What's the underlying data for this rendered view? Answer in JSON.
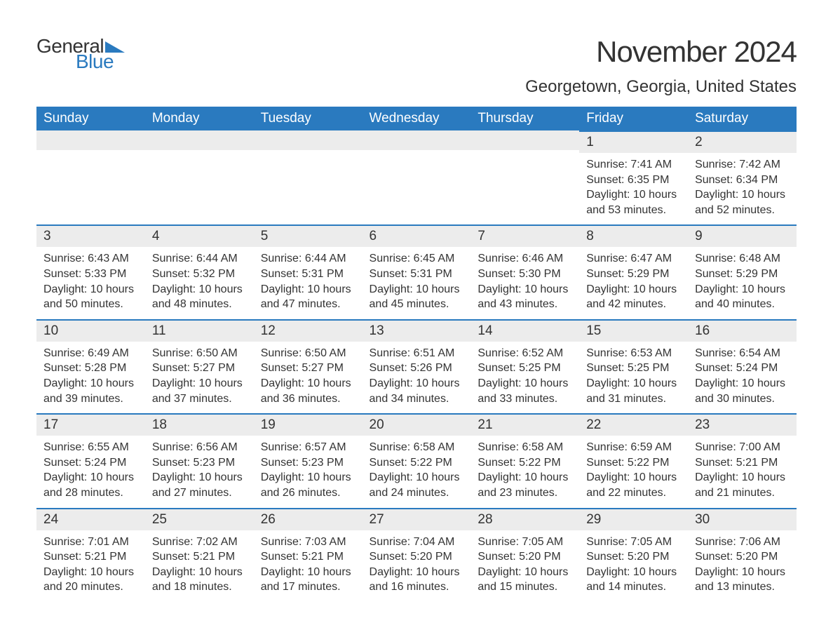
{
  "logo": {
    "line1": "General",
    "line2": "Blue"
  },
  "header": {
    "title": "November 2024",
    "location": "Georgetown, Georgia, United States"
  },
  "colors": {
    "brand_blue": "#2a7abf",
    "header_bg": "#ececec",
    "text": "#333333",
    "bg": "#ffffff"
  },
  "day_names": [
    "Sunday",
    "Monday",
    "Tuesday",
    "Wednesday",
    "Thursday",
    "Friday",
    "Saturday"
  ],
  "weeks": [
    [
      null,
      null,
      null,
      null,
      null,
      {
        "n": "1",
        "sr": "7:41 AM",
        "ss": "6:35 PM",
        "dl": "10 hours and 53 minutes."
      },
      {
        "n": "2",
        "sr": "7:42 AM",
        "ss": "6:34 PM",
        "dl": "10 hours and 52 minutes."
      }
    ],
    [
      {
        "n": "3",
        "sr": "6:43 AM",
        "ss": "5:33 PM",
        "dl": "10 hours and 50 minutes."
      },
      {
        "n": "4",
        "sr": "6:44 AM",
        "ss": "5:32 PM",
        "dl": "10 hours and 48 minutes."
      },
      {
        "n": "5",
        "sr": "6:44 AM",
        "ss": "5:31 PM",
        "dl": "10 hours and 47 minutes."
      },
      {
        "n": "6",
        "sr": "6:45 AM",
        "ss": "5:31 PM",
        "dl": "10 hours and 45 minutes."
      },
      {
        "n": "7",
        "sr": "6:46 AM",
        "ss": "5:30 PM",
        "dl": "10 hours and 43 minutes."
      },
      {
        "n": "8",
        "sr": "6:47 AM",
        "ss": "5:29 PM",
        "dl": "10 hours and 42 minutes."
      },
      {
        "n": "9",
        "sr": "6:48 AM",
        "ss": "5:29 PM",
        "dl": "10 hours and 40 minutes."
      }
    ],
    [
      {
        "n": "10",
        "sr": "6:49 AM",
        "ss": "5:28 PM",
        "dl": "10 hours and 39 minutes."
      },
      {
        "n": "11",
        "sr": "6:50 AM",
        "ss": "5:27 PM",
        "dl": "10 hours and 37 minutes."
      },
      {
        "n": "12",
        "sr": "6:50 AM",
        "ss": "5:27 PM",
        "dl": "10 hours and 36 minutes."
      },
      {
        "n": "13",
        "sr": "6:51 AM",
        "ss": "5:26 PM",
        "dl": "10 hours and 34 minutes."
      },
      {
        "n": "14",
        "sr": "6:52 AM",
        "ss": "5:25 PM",
        "dl": "10 hours and 33 minutes."
      },
      {
        "n": "15",
        "sr": "6:53 AM",
        "ss": "5:25 PM",
        "dl": "10 hours and 31 minutes."
      },
      {
        "n": "16",
        "sr": "6:54 AM",
        "ss": "5:24 PM",
        "dl": "10 hours and 30 minutes."
      }
    ],
    [
      {
        "n": "17",
        "sr": "6:55 AM",
        "ss": "5:24 PM",
        "dl": "10 hours and 28 minutes."
      },
      {
        "n": "18",
        "sr": "6:56 AM",
        "ss": "5:23 PM",
        "dl": "10 hours and 27 minutes."
      },
      {
        "n": "19",
        "sr": "6:57 AM",
        "ss": "5:23 PM",
        "dl": "10 hours and 26 minutes."
      },
      {
        "n": "20",
        "sr": "6:58 AM",
        "ss": "5:22 PM",
        "dl": "10 hours and 24 minutes."
      },
      {
        "n": "21",
        "sr": "6:58 AM",
        "ss": "5:22 PM",
        "dl": "10 hours and 23 minutes."
      },
      {
        "n": "22",
        "sr": "6:59 AM",
        "ss": "5:22 PM",
        "dl": "10 hours and 22 minutes."
      },
      {
        "n": "23",
        "sr": "7:00 AM",
        "ss": "5:21 PM",
        "dl": "10 hours and 21 minutes."
      }
    ],
    [
      {
        "n": "24",
        "sr": "7:01 AM",
        "ss": "5:21 PM",
        "dl": "10 hours and 20 minutes."
      },
      {
        "n": "25",
        "sr": "7:02 AM",
        "ss": "5:21 PM",
        "dl": "10 hours and 18 minutes."
      },
      {
        "n": "26",
        "sr": "7:03 AM",
        "ss": "5:21 PM",
        "dl": "10 hours and 17 minutes."
      },
      {
        "n": "27",
        "sr": "7:04 AM",
        "ss": "5:20 PM",
        "dl": "10 hours and 16 minutes."
      },
      {
        "n": "28",
        "sr": "7:05 AM",
        "ss": "5:20 PM",
        "dl": "10 hours and 15 minutes."
      },
      {
        "n": "29",
        "sr": "7:05 AM",
        "ss": "5:20 PM",
        "dl": "10 hours and 14 minutes."
      },
      {
        "n": "30",
        "sr": "7:06 AM",
        "ss": "5:20 PM",
        "dl": "10 hours and 13 minutes."
      }
    ]
  ],
  "labels": {
    "sunrise": "Sunrise: ",
    "sunset": "Sunset: ",
    "daylight": "Daylight: "
  }
}
